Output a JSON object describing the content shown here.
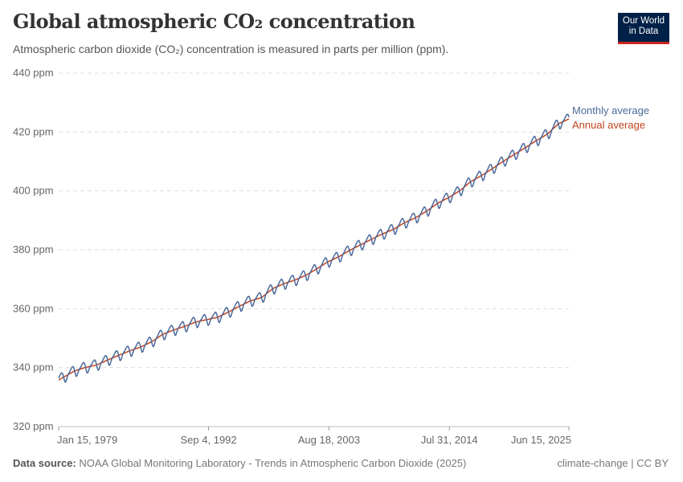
{
  "header": {
    "title": "Global atmospheric CO₂ concentration",
    "subtitle": "Atmospheric carbon dioxide (CO₂) concentration is measured in parts per million (ppm).",
    "logo": "Our World in Data"
  },
  "footer": {
    "source_label": "Data source:",
    "source": "NOAA Global Monitoring Laboratory - Trends in Atmospheric Carbon Dioxide (2025)",
    "license": "climate-change | CC BY"
  },
  "chart_data": {
    "type": "line",
    "ylim": [
      320,
      440
    ],
    "y_ticks": [
      320,
      340,
      360,
      380,
      400,
      420,
      440
    ],
    "y_tick_labels": [
      "320 ppm",
      "340 ppm",
      "360 ppm",
      "380 ppm",
      "400 ppm",
      "420 ppm",
      "440 ppm"
    ],
    "x_range": [
      "1979-01-15",
      "2025-06-15"
    ],
    "x_ticks": [
      {
        "date": "1979-01-15",
        "label": "Jan 15, 1979"
      },
      {
        "date": "1992-09-04",
        "label": "Sep 4, 1992"
      },
      {
        "date": "2003-08-18",
        "label": "Aug 18, 2003"
      },
      {
        "date": "2014-07-31",
        "label": "Jul 31, 2014"
      },
      {
        "date": "2025-06-15",
        "label": "Jun 15, 2025"
      }
    ],
    "grid": "horizontal dashed",
    "legend": "inline-right",
    "colors": {
      "monthly": "#4c6a9c",
      "annual": "#c2441e"
    },
    "series": [
      {
        "name": "Monthly average",
        "seasonal_offsets_ppm": [
          0.6,
          1.2,
          1.6,
          1.9,
          1.6,
          0.6,
          -0.9,
          -2.0,
          -1.9,
          -1.0,
          -0.2,
          0.3
        ]
      },
      {
        "name": "Annual average",
        "years": [
          1979,
          1980,
          1981,
          1982,
          1983,
          1984,
          1985,
          1986,
          1987,
          1988,
          1989,
          1990,
          1991,
          1992,
          1993,
          1994,
          1995,
          1996,
          1997,
          1998,
          1999,
          2000,
          2001,
          2002,
          2003,
          2004,
          2005,
          2006,
          2007,
          2008,
          2009,
          2010,
          2011,
          2012,
          2013,
          2014,
          2015,
          2016,
          2017,
          2018,
          2019,
          2020,
          2021,
          2022,
          2023,
          2024,
          2025
        ],
        "values": [
          336.8,
          338.9,
          340.1,
          340.9,
          342.6,
          344.2,
          345.7,
          347.0,
          348.8,
          351.3,
          352.8,
          354.0,
          355.5,
          356.3,
          357.1,
          358.9,
          360.9,
          362.7,
          363.8,
          366.8,
          368.5,
          369.7,
          371.3,
          373.5,
          375.9,
          377.6,
          379.8,
          381.7,
          383.6,
          385.4,
          387.0,
          389.2,
          390.9,
          393.1,
          395.8,
          397.7,
          400.0,
          403.1,
          405.2,
          407.6,
          410.1,
          412.4,
          414.7,
          417.1,
          419.3,
          422.8,
          424.5
        ]
      }
    ]
  }
}
